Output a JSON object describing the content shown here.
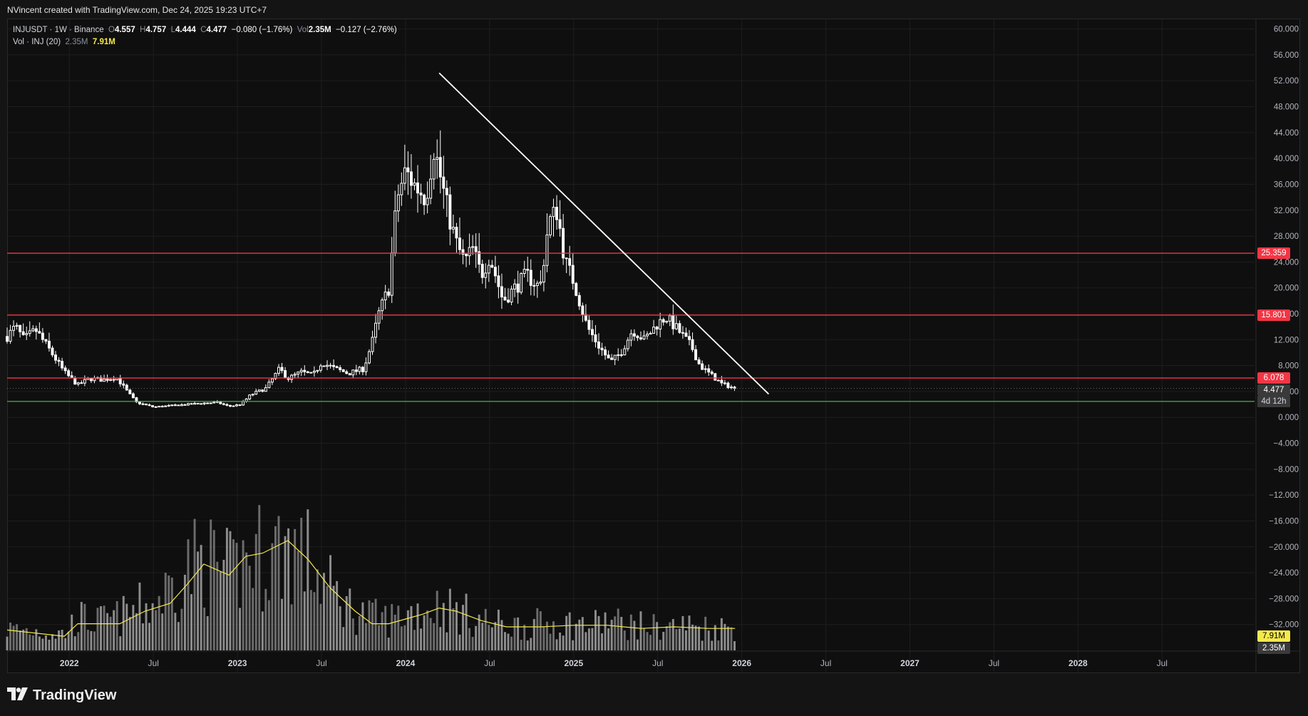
{
  "header": {
    "attribution": "NVincent created with TradingView.com, Dec 24, 2025 19:23 UTC+7"
  },
  "legend": {
    "symbol": "INJUSDT · 1W · Binance",
    "open_label": "O",
    "open": "4.557",
    "high_label": "H",
    "high": "4.757",
    "low_label": "L",
    "low": "4.444",
    "close_label": "C",
    "close": "4.477",
    "change": "−0.080 (−1.76%)",
    "vol_label": "Vol",
    "vol": "2.35M",
    "vol_change": "−0.127 (−2.76%)",
    "vol_indicator": "Vol · INJ (20)",
    "vol_current": "2.35M",
    "vol_ma": "7.91M"
  },
  "footer": {
    "brand": "TradingView"
  },
  "colors": {
    "background": "#0f0f0f",
    "resistance": "#f23645",
    "support": "#4caf50",
    "trendline": "#ffffff",
    "candle": "#ffffff",
    "volume": "#a3a3a3",
    "vol_ma": "#f5e94b"
  },
  "chart_data": {
    "type": "candlestick",
    "symbol": "INJUSDT",
    "interval": "1W",
    "exchange": "Binance",
    "y_axis": {
      "ticks": [
        "60.000",
        "56.000",
        "52.000",
        "48.000",
        "44.000",
        "40.000",
        "36.000",
        "32.000",
        "28.000",
        "24.000",
        "20.000",
        "16.000",
        "12.000",
        "8.000",
        "4.000",
        "0.000",
        "−4.000",
        "−8.000",
        "−12.000",
        "−16.000",
        "−20.000",
        "−24.000",
        "−28.000",
        "−32.000"
      ],
      "tick_values": [
        60,
        56,
        52,
        48,
        44,
        40,
        36,
        32,
        28,
        24,
        20,
        16,
        12,
        8,
        4,
        0,
        -4,
        -8,
        -12,
        -16,
        -20,
        -24,
        -28,
        -32
      ],
      "ylim": [
        -36,
        61.5
      ]
    },
    "x_axis": {
      "ticks": [
        "2022",
        "Jul",
        "2023",
        "Jul",
        "2024",
        "Jul",
        "2025",
        "Jul",
        "2026",
        "Jul",
        "2027",
        "Jul",
        "2028",
        "Jul"
      ],
      "tick_years": [
        2022.0,
        2022.5,
        2023.0,
        2023.5,
        2024.0,
        2024.5,
        2025.0,
        2025.5,
        2026.0,
        2026.5,
        2027.0,
        2027.5,
        2028.0,
        2028.5
      ],
      "xlim": [
        2021.63,
        2029.05
      ]
    },
    "horizontal_levels": [
      {
        "label": "25.359",
        "value": 25.359,
        "color": "#f23645"
      },
      {
        "label": "15.801",
        "value": 15.801,
        "color": "#f23645"
      },
      {
        "label": "6.078",
        "value": 6.078,
        "color": "#f23645"
      },
      {
        "label": "2.459",
        "value": 2.459,
        "color": "#4caf50"
      }
    ],
    "current_price": {
      "label": "4.477",
      "countdown": "4d 12h",
      "value": 4.477
    },
    "trendline": {
      "start": {
        "x": 2024.2,
        "y": 53.2
      },
      "end": {
        "x": 2026.16,
        "y": 3.6
      }
    },
    "volume_axis_labels": [
      {
        "label": "7.91M",
        "role": "ma",
        "y": -34.9
      },
      {
        "label": "2.35M",
        "role": "current",
        "y": -36.8
      }
    ],
    "price_anchors": [
      [
        2021.63,
        12.5
      ],
      [
        2021.68,
        14.0
      ],
      [
        2021.73,
        12.0
      ],
      [
        2021.8,
        13.5
      ],
      [
        2021.88,
        10.5
      ],
      [
        2021.97,
        7.0
      ],
      [
        2022.05,
        5.0
      ],
      [
        2022.12,
        6.0
      ],
      [
        2022.2,
        5.8
      ],
      [
        2022.28,
        6.2
      ],
      [
        2022.35,
        3.8
      ],
      [
        2022.4,
        2.3
      ],
      [
        2022.5,
        1.6
      ],
      [
        2022.6,
        1.8
      ],
      [
        2022.7,
        2.0
      ],
      [
        2022.8,
        2.2
      ],
      [
        2022.88,
        2.3
      ],
      [
        2022.95,
        1.7
      ],
      [
        2023.02,
        2.0
      ],
      [
        2023.08,
        3.5
      ],
      [
        2023.17,
        4.5
      ],
      [
        2023.25,
        7.5
      ],
      [
        2023.3,
        6.0
      ],
      [
        2023.38,
        7.0
      ],
      [
        2023.45,
        6.5
      ],
      [
        2023.5,
        8.5
      ],
      [
        2023.58,
        7.5
      ],
      [
        2023.66,
        6.8
      ],
      [
        2023.75,
        7.5
      ],
      [
        2023.8,
        11.5
      ],
      [
        2023.84,
        16.0
      ],
      [
        2023.9,
        20.0
      ],
      [
        2023.95,
        34.0
      ],
      [
        2024.0,
        38.0
      ],
      [
        2024.05,
        36.0
      ],
      [
        2024.12,
        34.0
      ],
      [
        2024.17,
        42.0
      ],
      [
        2024.2,
        38.0
      ],
      [
        2024.25,
        32.0
      ],
      [
        2024.3,
        27.0
      ],
      [
        2024.35,
        24.0
      ],
      [
        2024.4,
        26.0
      ],
      [
        2024.45,
        22.0
      ],
      [
        2024.5,
        25.0
      ],
      [
        2024.58,
        18.0
      ],
      [
        2024.65,
        20.0
      ],
      [
        2024.72,
        22.0
      ],
      [
        2024.8,
        20.0
      ],
      [
        2024.85,
        30.0
      ],
      [
        2024.9,
        32.0
      ],
      [
        2024.95,
        24.0
      ],
      [
        2025.0,
        21.0
      ],
      [
        2025.08,
        14.0
      ],
      [
        2025.15,
        11.0
      ],
      [
        2025.22,
        8.5
      ],
      [
        2025.28,
        10.0
      ],
      [
        2025.35,
        13.5
      ],
      [
        2025.42,
        12.0
      ],
      [
        2025.5,
        14.5
      ],
      [
        2025.55,
        15.5
      ],
      [
        2025.62,
        13.5
      ],
      [
        2025.7,
        11.0
      ],
      [
        2025.75,
        8.0
      ],
      [
        2025.82,
        6.5
      ],
      [
        2025.88,
        5.2
      ],
      [
        2025.96,
        4.477
      ]
    ],
    "volume_anchors": [
      [
        2021.63,
        0.13
      ],
      [
        2021.8,
        0.12
      ],
      [
        2021.97,
        0.1
      ],
      [
        2022.05,
        0.2
      ],
      [
        2022.15,
        0.17
      ],
      [
        2022.3,
        0.2
      ],
      [
        2022.4,
        0.25
      ],
      [
        2022.5,
        0.28
      ],
      [
        2022.6,
        0.38
      ],
      [
        2022.7,
        0.5
      ],
      [
        2022.8,
        0.55
      ],
      [
        2022.9,
        0.48
      ],
      [
        2022.97,
        0.45
      ],
      [
        2023.05,
        0.55
      ],
      [
        2023.12,
        0.58
      ],
      [
        2023.2,
        0.58
      ],
      [
        2023.3,
        0.64
      ],
      [
        2023.4,
        0.58
      ],
      [
        2023.5,
        0.42
      ],
      [
        2023.6,
        0.32
      ],
      [
        2023.7,
        0.24
      ],
      [
        2023.8,
        0.2
      ],
      [
        2023.9,
        0.19
      ],
      [
        2024.0,
        0.22
      ],
      [
        2024.1,
        0.25
      ],
      [
        2024.2,
        0.27
      ],
      [
        2024.3,
        0.24
      ],
      [
        2024.4,
        0.2
      ],
      [
        2024.5,
        0.17
      ],
      [
        2024.6,
        0.15
      ],
      [
        2024.7,
        0.15
      ],
      [
        2024.8,
        0.16
      ],
      [
        2024.9,
        0.17
      ],
      [
        2025.0,
        0.16
      ],
      [
        2025.1,
        0.15
      ],
      [
        2025.2,
        0.18
      ],
      [
        2025.3,
        0.16
      ],
      [
        2025.4,
        0.15
      ],
      [
        2025.5,
        0.14
      ],
      [
        2025.6,
        0.15
      ],
      [
        2025.7,
        0.15
      ],
      [
        2025.8,
        0.14
      ],
      [
        2025.9,
        0.14
      ],
      [
        2025.96,
        0.14
      ]
    ],
    "volume_ma_anchors": [
      [
        2021.63,
        0.13
      ],
      [
        2021.97,
        0.09
      ],
      [
        2022.05,
        0.17
      ],
      [
        2022.3,
        0.17
      ],
      [
        2022.45,
        0.25
      ],
      [
        2022.6,
        0.3
      ],
      [
        2022.7,
        0.42
      ],
      [
        2022.8,
        0.55
      ],
      [
        2022.95,
        0.48
      ],
      [
        2023.05,
        0.6
      ],
      [
        2023.15,
        0.62
      ],
      [
        2023.3,
        0.7
      ],
      [
        2023.42,
        0.58
      ],
      [
        2023.55,
        0.4
      ],
      [
        2023.7,
        0.25
      ],
      [
        2023.8,
        0.17
      ],
      [
        2023.9,
        0.17
      ],
      [
        2024.0,
        0.2
      ],
      [
        2024.1,
        0.23
      ],
      [
        2024.2,
        0.27
      ],
      [
        2024.3,
        0.25
      ],
      [
        2024.45,
        0.19
      ],
      [
        2024.6,
        0.15
      ],
      [
        2024.8,
        0.15
      ],
      [
        2025.0,
        0.16
      ],
      [
        2025.2,
        0.16
      ],
      [
        2025.4,
        0.14
      ],
      [
        2025.6,
        0.15
      ],
      [
        2025.8,
        0.14
      ],
      [
        2025.96,
        0.14
      ]
    ]
  }
}
